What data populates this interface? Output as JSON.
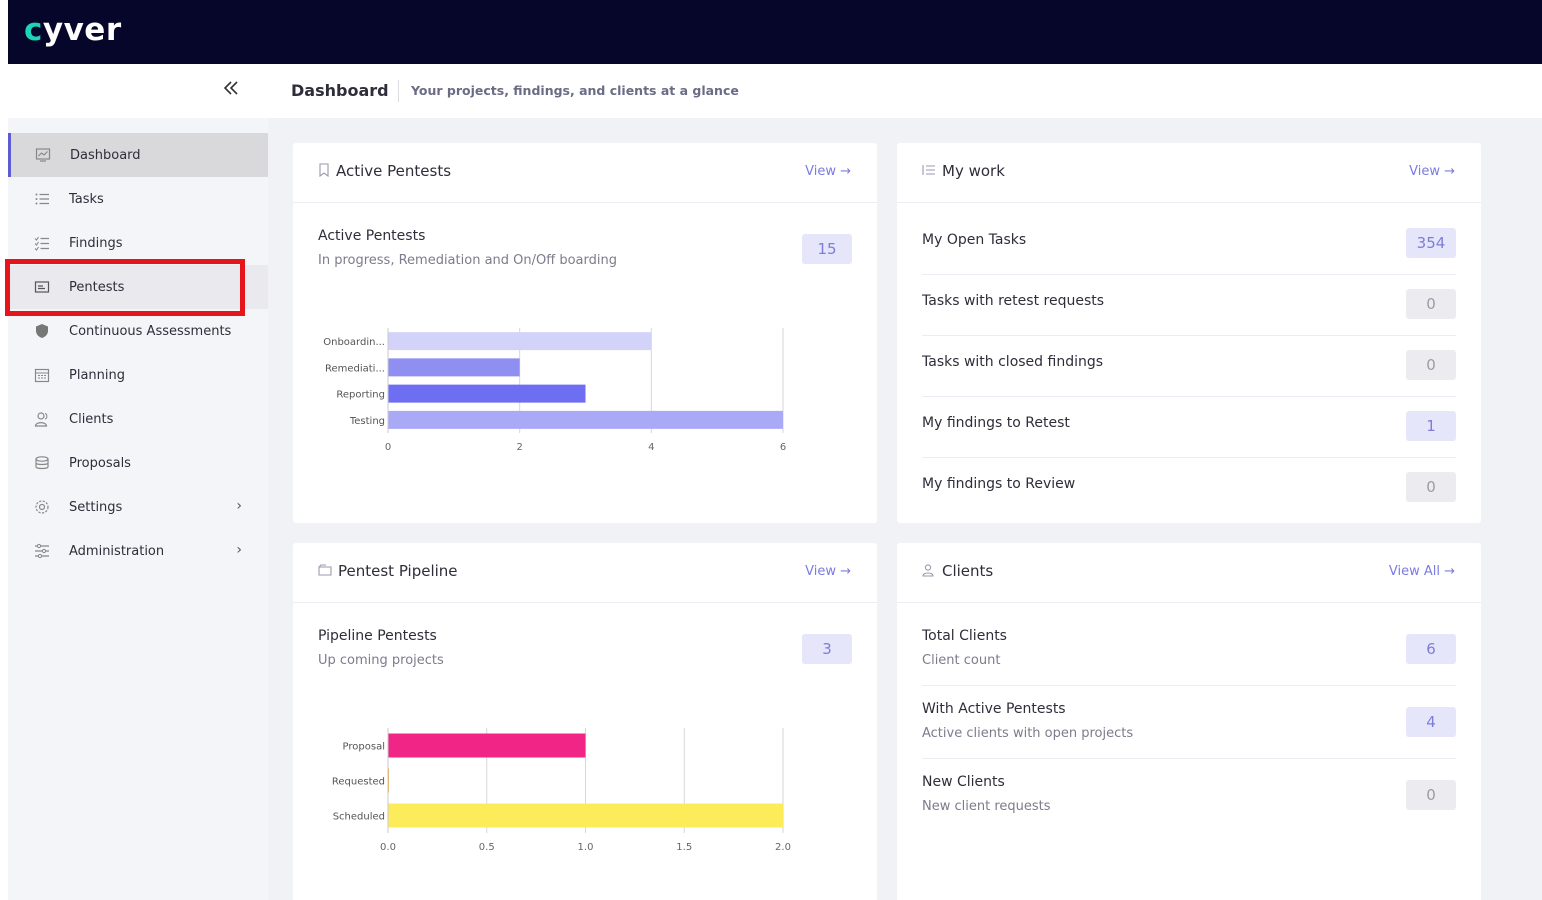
{
  "app": {
    "logo_mark": "c",
    "logo_text": "yver"
  },
  "header": {
    "title": "Dashboard",
    "subtitle": "Your projects, findings, and clients at a glance"
  },
  "sidebar": {
    "collapse_icon": "double-chevron-left-icon",
    "items": [
      {
        "label": "Dashboard",
        "icon": "chart-line-icon"
      },
      {
        "label": "Tasks",
        "icon": "list-icon"
      },
      {
        "label": "Findings",
        "icon": "checklist-icon"
      },
      {
        "label": "Pentests",
        "icon": "folder-icon"
      },
      {
        "label": "Continuous Assessments",
        "icon": "shield-icon"
      },
      {
        "label": "Planning",
        "icon": "calendar-icon"
      },
      {
        "label": "Clients",
        "icon": "users-icon"
      },
      {
        "label": "Proposals",
        "icon": "stack-icon"
      },
      {
        "label": "Settings",
        "icon": "gear-icon"
      },
      {
        "label": "Administration",
        "icon": "sliders-icon"
      }
    ]
  },
  "active_pentests": {
    "title": "Active Pentests",
    "view": "View →",
    "row_title": "Active Pentests",
    "row_sub": "In progress, Remediation and On/Off boarding",
    "count": "15"
  },
  "my_work": {
    "title": "My work",
    "view": "View →",
    "rows": [
      {
        "label": "My Open Tasks",
        "count": "354"
      },
      {
        "label": "Tasks with retest requests",
        "count": "0"
      },
      {
        "label": "Tasks with closed findings",
        "count": "0"
      },
      {
        "label": "My findings to Retest",
        "count": "1"
      },
      {
        "label": "My findings to Review",
        "count": "0"
      }
    ]
  },
  "pipeline": {
    "title": "Pentest Pipeline",
    "view": "View →",
    "row_title": "Pipeline Pentests",
    "row_sub": "Up coming projects",
    "count": "3"
  },
  "clients": {
    "title": "Clients",
    "view": "View All →",
    "rows": [
      {
        "label": "Total Clients",
        "sub": "Client count",
        "count": "6"
      },
      {
        "label": "With Active Pentests",
        "sub": "Active clients with open projects",
        "count": "4"
      },
      {
        "label": "New Clients",
        "sub": "New client requests",
        "count": "0"
      }
    ]
  },
  "chart_data": [
    {
      "type": "bar",
      "orientation": "horizontal",
      "title": "",
      "categories": [
        "Onboardin...",
        "Remediati...",
        "Reporting",
        "Testing"
      ],
      "values": [
        4,
        2,
        3,
        6
      ],
      "colors": [
        "#d3d3fa",
        "#8f8ff2",
        "#6e6ef2",
        "#a9a9f6"
      ],
      "xlim": [
        0,
        6
      ],
      "xticks": [
        "0",
        "2",
        "4",
        "6"
      ],
      "grid": true
    },
    {
      "type": "bar",
      "orientation": "horizontal",
      "title": "",
      "categories": [
        "Proposal",
        "Requested",
        "Scheduled"
      ],
      "values": [
        1,
        0,
        2
      ],
      "colors": [
        "#f02585",
        "#f5a623",
        "#fdec5a"
      ],
      "xlim": [
        0,
        2
      ],
      "xticks": [
        "0.0",
        "0.5",
        "1.0",
        "1.5",
        "2.0"
      ],
      "grid": true
    }
  ]
}
